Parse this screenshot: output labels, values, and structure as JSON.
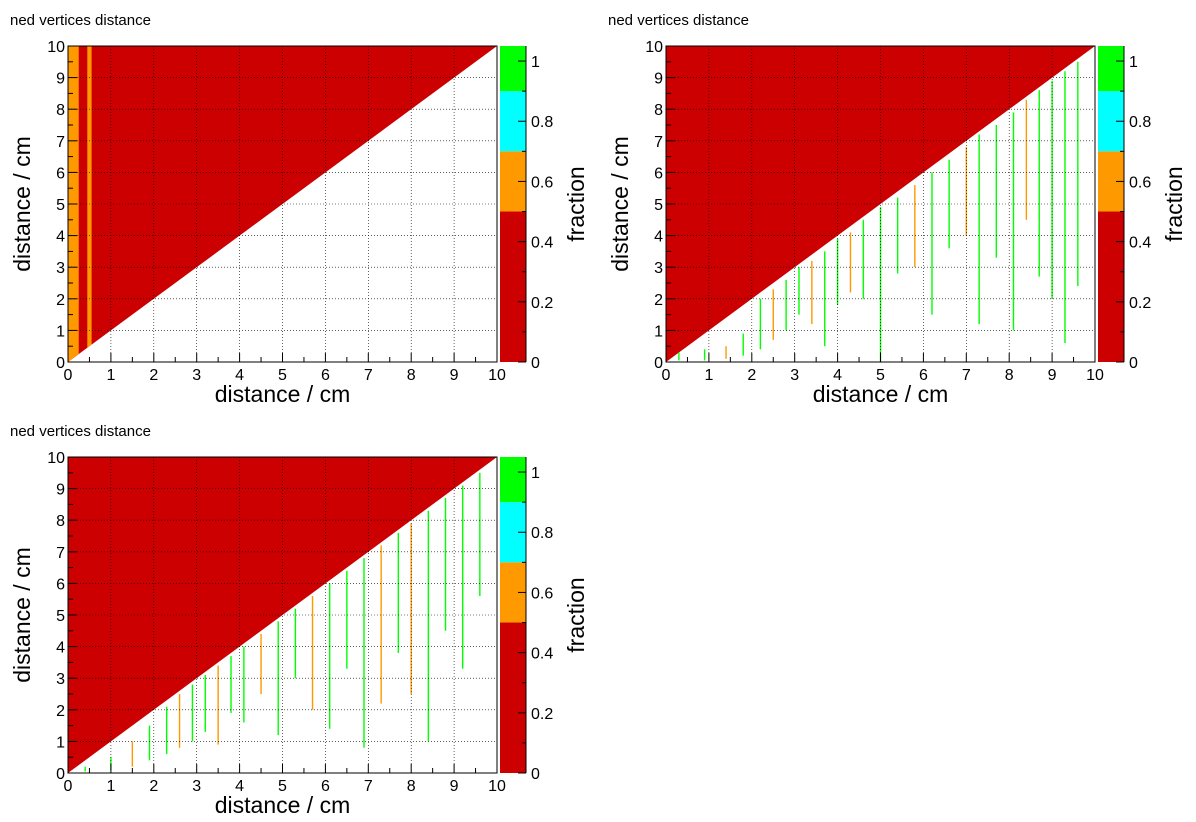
{
  "palette": {
    "red": "#cc0000",
    "orange": "#ff9900",
    "cyan": "#00ffff",
    "green": "#00ff00",
    "white": "#ffffff"
  },
  "chart_data": [
    {
      "type": "heatmap",
      "title": "ned vertices distance",
      "xlabel": "distance / cm",
      "ylabel": "distance / cm",
      "zlabel": "fraction",
      "xlim": [
        0,
        10
      ],
      "ylim": [
        0,
        10
      ],
      "zlim": [
        0,
        1.05
      ],
      "xticks": [
        "0",
        "1",
        "2",
        "3",
        "4",
        "5",
        "6",
        "7",
        "8",
        "9",
        "10"
      ],
      "yticks": [
        "0",
        "1",
        "2",
        "3",
        "4",
        "5",
        "6",
        "7",
        "8",
        "9",
        "10"
      ],
      "zticks": [
        "0",
        "0.2",
        "0.4",
        "0.6",
        "0.8",
        "1"
      ],
      "color_levels": [
        {
          "from": 0,
          "to": 0.5,
          "color": "#cc0000"
        },
        {
          "from": 0.5,
          "to": 0.7,
          "color": "#ff9900"
        },
        {
          "from": 0.7,
          "to": 0.9,
          "color": "#00ffff"
        },
        {
          "from": 0.9,
          "to": 1.05,
          "color": "#00ff00"
        }
      ],
      "grid": true,
      "filled_region": "y >= x (upper-left triangle)",
      "fill_value": 0.3,
      "bands": [
        {
          "x_from": 0.0,
          "x_to": 0.25,
          "value": 0.6
        },
        {
          "x_from": 0.45,
          "x_to": 0.55,
          "value": 0.6
        }
      ],
      "spikes": []
    },
    {
      "type": "heatmap",
      "title": "ned vertices distance",
      "xlabel": "distance / cm",
      "ylabel": "distance / cm",
      "zlabel": "fraction",
      "xlim": [
        0,
        10
      ],
      "ylim": [
        0,
        10
      ],
      "zlim": [
        0,
        1.05
      ],
      "xticks": [
        "0",
        "1",
        "2",
        "3",
        "4",
        "5",
        "6",
        "7",
        "8",
        "9",
        "10"
      ],
      "yticks": [
        "0",
        "1",
        "2",
        "3",
        "4",
        "5",
        "6",
        "7",
        "8",
        "9",
        "10"
      ],
      "zticks": [
        "0",
        "0.2",
        "0.4",
        "0.6",
        "0.8",
        "1"
      ],
      "color_levels": [
        {
          "from": 0,
          "to": 0.5,
          "color": "#cc0000"
        },
        {
          "from": 0.5,
          "to": 0.7,
          "color": "#ff9900"
        },
        {
          "from": 0.7,
          "to": 0.9,
          "color": "#00ffff"
        },
        {
          "from": 0.9,
          "to": 1.05,
          "color": "#00ff00"
        }
      ],
      "grid": true,
      "filled_region": "y >= x (upper-left triangle)",
      "fill_value": 0.3,
      "bands": [],
      "spikes": [
        {
          "x": 0.3,
          "y_top": 0.3,
          "y_bottom": 0.05,
          "value": 1.0
        },
        {
          "x": 0.9,
          "y_top": 0.4,
          "y_bottom": 0.05,
          "value": 1.0
        },
        {
          "x": 1.4,
          "y_top": 0.5,
          "y_bottom": 0.1,
          "value": 0.6
        },
        {
          "x": 1.8,
          "y_top": 0.9,
          "y_bottom": 0.2,
          "value": 1.0
        },
        {
          "x": 2.2,
          "y_top": 2.0,
          "y_bottom": 0.4,
          "value": 1.0
        },
        {
          "x": 2.5,
          "y_top": 2.3,
          "y_bottom": 0.7,
          "value": 0.6
        },
        {
          "x": 2.8,
          "y_top": 2.6,
          "y_bottom": 1.0,
          "value": 1.0
        },
        {
          "x": 3.1,
          "y_top": 3.0,
          "y_bottom": 1.5,
          "value": 1.0
        },
        {
          "x": 3.4,
          "y_top": 3.2,
          "y_bottom": 1.2,
          "value": 0.6
        },
        {
          "x": 3.7,
          "y_top": 3.5,
          "y_bottom": 0.5,
          "value": 1.0
        },
        {
          "x": 4.0,
          "y_top": 3.9,
          "y_bottom": 1.8,
          "value": 1.0
        },
        {
          "x": 4.3,
          "y_top": 4.1,
          "y_bottom": 2.2,
          "value": 0.6
        },
        {
          "x": 4.6,
          "y_top": 4.5,
          "y_bottom": 2.0,
          "value": 1.0
        },
        {
          "x": 5.0,
          "y_top": 4.9,
          "y_bottom": 0.0,
          "value": 1.0
        },
        {
          "x": 5.4,
          "y_top": 5.2,
          "y_bottom": 2.8,
          "value": 1.0
        },
        {
          "x": 5.8,
          "y_top": 5.6,
          "y_bottom": 3.0,
          "value": 0.6
        },
        {
          "x": 6.2,
          "y_top": 6.0,
          "y_bottom": 1.5,
          "value": 1.0
        },
        {
          "x": 6.6,
          "y_top": 6.4,
          "y_bottom": 3.6,
          "value": 1.0
        },
        {
          "x": 7.0,
          "y_top": 6.8,
          "y_bottom": 4.0,
          "value": 0.6
        },
        {
          "x": 7.3,
          "y_top": 7.2,
          "y_bottom": 1.2,
          "value": 1.0
        },
        {
          "x": 7.7,
          "y_top": 7.5,
          "y_bottom": 3.3,
          "value": 1.0
        },
        {
          "x": 8.1,
          "y_top": 7.9,
          "y_bottom": 1.0,
          "value": 1.0
        },
        {
          "x": 8.4,
          "y_top": 8.3,
          "y_bottom": 4.5,
          "value": 0.6
        },
        {
          "x": 8.7,
          "y_top": 8.6,
          "y_bottom": 2.7,
          "value": 1.0
        },
        {
          "x": 9.0,
          "y_top": 8.9,
          "y_bottom": 2.0,
          "value": 1.0
        },
        {
          "x": 9.3,
          "y_top": 9.2,
          "y_bottom": 0.6,
          "value": 1.0
        },
        {
          "x": 9.6,
          "y_top": 9.5,
          "y_bottom": 2.4,
          "value": 1.0
        }
      ]
    },
    {
      "type": "heatmap",
      "title": "ned vertices distance",
      "xlabel": "distance / cm",
      "ylabel": "distance / cm",
      "zlabel": "fraction",
      "xlim": [
        0,
        10
      ],
      "ylim": [
        0,
        10
      ],
      "zlim": [
        0,
        1.05
      ],
      "xticks": [
        "0",
        "1",
        "2",
        "3",
        "4",
        "5",
        "6",
        "7",
        "8",
        "9",
        "10"
      ],
      "yticks": [
        "0",
        "1",
        "2",
        "3",
        "4",
        "5",
        "6",
        "7",
        "8",
        "9",
        "10"
      ],
      "zticks": [
        "0",
        "0.2",
        "0.4",
        "0.6",
        "0.8",
        "1"
      ],
      "color_levels": [
        {
          "from": 0,
          "to": 0.5,
          "color": "#cc0000"
        },
        {
          "from": 0.5,
          "to": 0.7,
          "color": "#ff9900"
        },
        {
          "from": 0.7,
          "to": 0.9,
          "color": "#00ffff"
        },
        {
          "from": 0.9,
          "to": 1.05,
          "color": "#00ff00"
        }
      ],
      "grid": true,
      "filled_region": "y >= x (upper-left triangle)",
      "fill_value": 0.3,
      "bands": [],
      "spikes": [
        {
          "x": 0.4,
          "y_top": 0.2,
          "y_bottom": 0.05,
          "value": 1.0
        },
        {
          "x": 1.0,
          "y_top": 0.5,
          "y_bottom": 0.1,
          "value": 1.0
        },
        {
          "x": 1.5,
          "y_top": 1.0,
          "y_bottom": 0.2,
          "value": 0.6
        },
        {
          "x": 1.9,
          "y_top": 1.5,
          "y_bottom": 0.4,
          "value": 1.0
        },
        {
          "x": 2.3,
          "y_top": 2.1,
          "y_bottom": 0.6,
          "value": 1.0
        },
        {
          "x": 2.6,
          "y_top": 2.5,
          "y_bottom": 0.8,
          "value": 0.6
        },
        {
          "x": 2.9,
          "y_top": 2.8,
          "y_bottom": 1.0,
          "value": 1.0
        },
        {
          "x": 3.2,
          "y_top": 3.1,
          "y_bottom": 1.3,
          "value": 1.0
        },
        {
          "x": 3.5,
          "y_top": 3.4,
          "y_bottom": 0.9,
          "value": 0.6
        },
        {
          "x": 3.8,
          "y_top": 3.7,
          "y_bottom": 1.9,
          "value": 1.0
        },
        {
          "x": 4.1,
          "y_top": 4.0,
          "y_bottom": 1.6,
          "value": 1.0
        },
        {
          "x": 4.5,
          "y_top": 4.4,
          "y_bottom": 2.5,
          "value": 0.6
        },
        {
          "x": 4.9,
          "y_top": 4.8,
          "y_bottom": 1.2,
          "value": 1.0
        },
        {
          "x": 5.3,
          "y_top": 5.2,
          "y_bottom": 3.0,
          "value": 1.0
        },
        {
          "x": 5.7,
          "y_top": 5.6,
          "y_bottom": 2.0,
          "value": 0.6
        },
        {
          "x": 6.1,
          "y_top": 6.0,
          "y_bottom": 1.4,
          "value": 1.0
        },
        {
          "x": 6.5,
          "y_top": 6.4,
          "y_bottom": 3.3,
          "value": 1.0
        },
        {
          "x": 6.9,
          "y_top": 6.8,
          "y_bottom": 0.8,
          "value": 1.0
        },
        {
          "x": 7.3,
          "y_top": 7.2,
          "y_bottom": 2.2,
          "value": 0.6
        },
        {
          "x": 7.7,
          "y_top": 7.6,
          "y_bottom": 3.8,
          "value": 1.0
        },
        {
          "x": 8.0,
          "y_top": 7.9,
          "y_bottom": 2.5,
          "value": 0.6
        },
        {
          "x": 8.4,
          "y_top": 8.3,
          "y_bottom": 1.0,
          "value": 1.0
        },
        {
          "x": 8.8,
          "y_top": 8.7,
          "y_bottom": 4.5,
          "value": 1.0
        },
        {
          "x": 9.2,
          "y_top": 9.1,
          "y_bottom": 3.3,
          "value": 1.0
        },
        {
          "x": 9.6,
          "y_top": 9.5,
          "y_bottom": 5.6,
          "value": 1.0
        }
      ]
    }
  ]
}
